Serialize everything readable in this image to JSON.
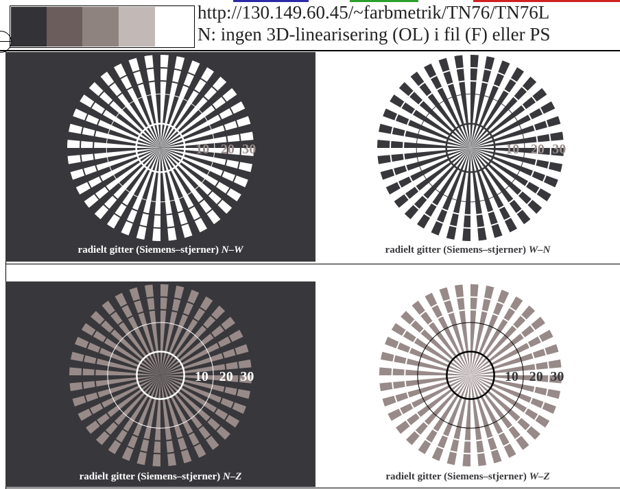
{
  "header": {
    "url": "http://130.149.60.45/~farbmetrik/TN76/TN76L",
    "info": "N: ingen 3D-linearisering (OL) i fil (F) eller PS",
    "swatches": [
      "#333236",
      "#6a5d5c",
      "#8f8380",
      "#c2b9b7",
      "#ffffff"
    ],
    "strip_colors": [
      "#2a2aa8",
      "#ffffff",
      "#2aa02a",
      "#ffffff",
      "#d02020"
    ]
  },
  "panels": [
    {
      "id": "nw",
      "background": "#38373b",
      "spoke_color": "#ffffff",
      "ring_color": "#ffffff",
      "label_color": "#9b8f8d",
      "labels": [
        "10",
        "20",
        "30"
      ],
      "caption_main": "radielt gitter (Siemens–stjerner) ",
      "caption_suffix": "N–W",
      "caption_color": "#ffffff"
    },
    {
      "id": "wn",
      "background": "#ffffff",
      "spoke_color": "#38373b",
      "ring_color": "#38373b",
      "label_color": "#9b8f8d",
      "labels": [
        "10",
        "20",
        "30"
      ],
      "caption_main": "radielt gitter (Siemens–stjerner) ",
      "caption_suffix": "W–N",
      "caption_color": "#38373b"
    },
    {
      "id": "nz",
      "background": "#38373b",
      "spoke_color": "#978a88",
      "ring_color": "#ffffff",
      "label_color": "#ffffff",
      "labels": [
        "10",
        "20",
        "30"
      ],
      "caption_main": "radielt gitter (Siemens–stjerner) ",
      "caption_suffix": "N–Z",
      "caption_color": "#ffffff"
    },
    {
      "id": "wz",
      "background": "#ffffff",
      "spoke_color": "#978a88",
      "ring_color": "#000000",
      "label_color": "#38373b",
      "labels": [
        "10",
        "20",
        "30"
      ],
      "caption_main": "radielt gitter (Siemens–stjerner) ",
      "caption_suffix": "W–Z",
      "caption_color": "#38373b"
    }
  ],
  "spokes": {
    "count": 36
  }
}
